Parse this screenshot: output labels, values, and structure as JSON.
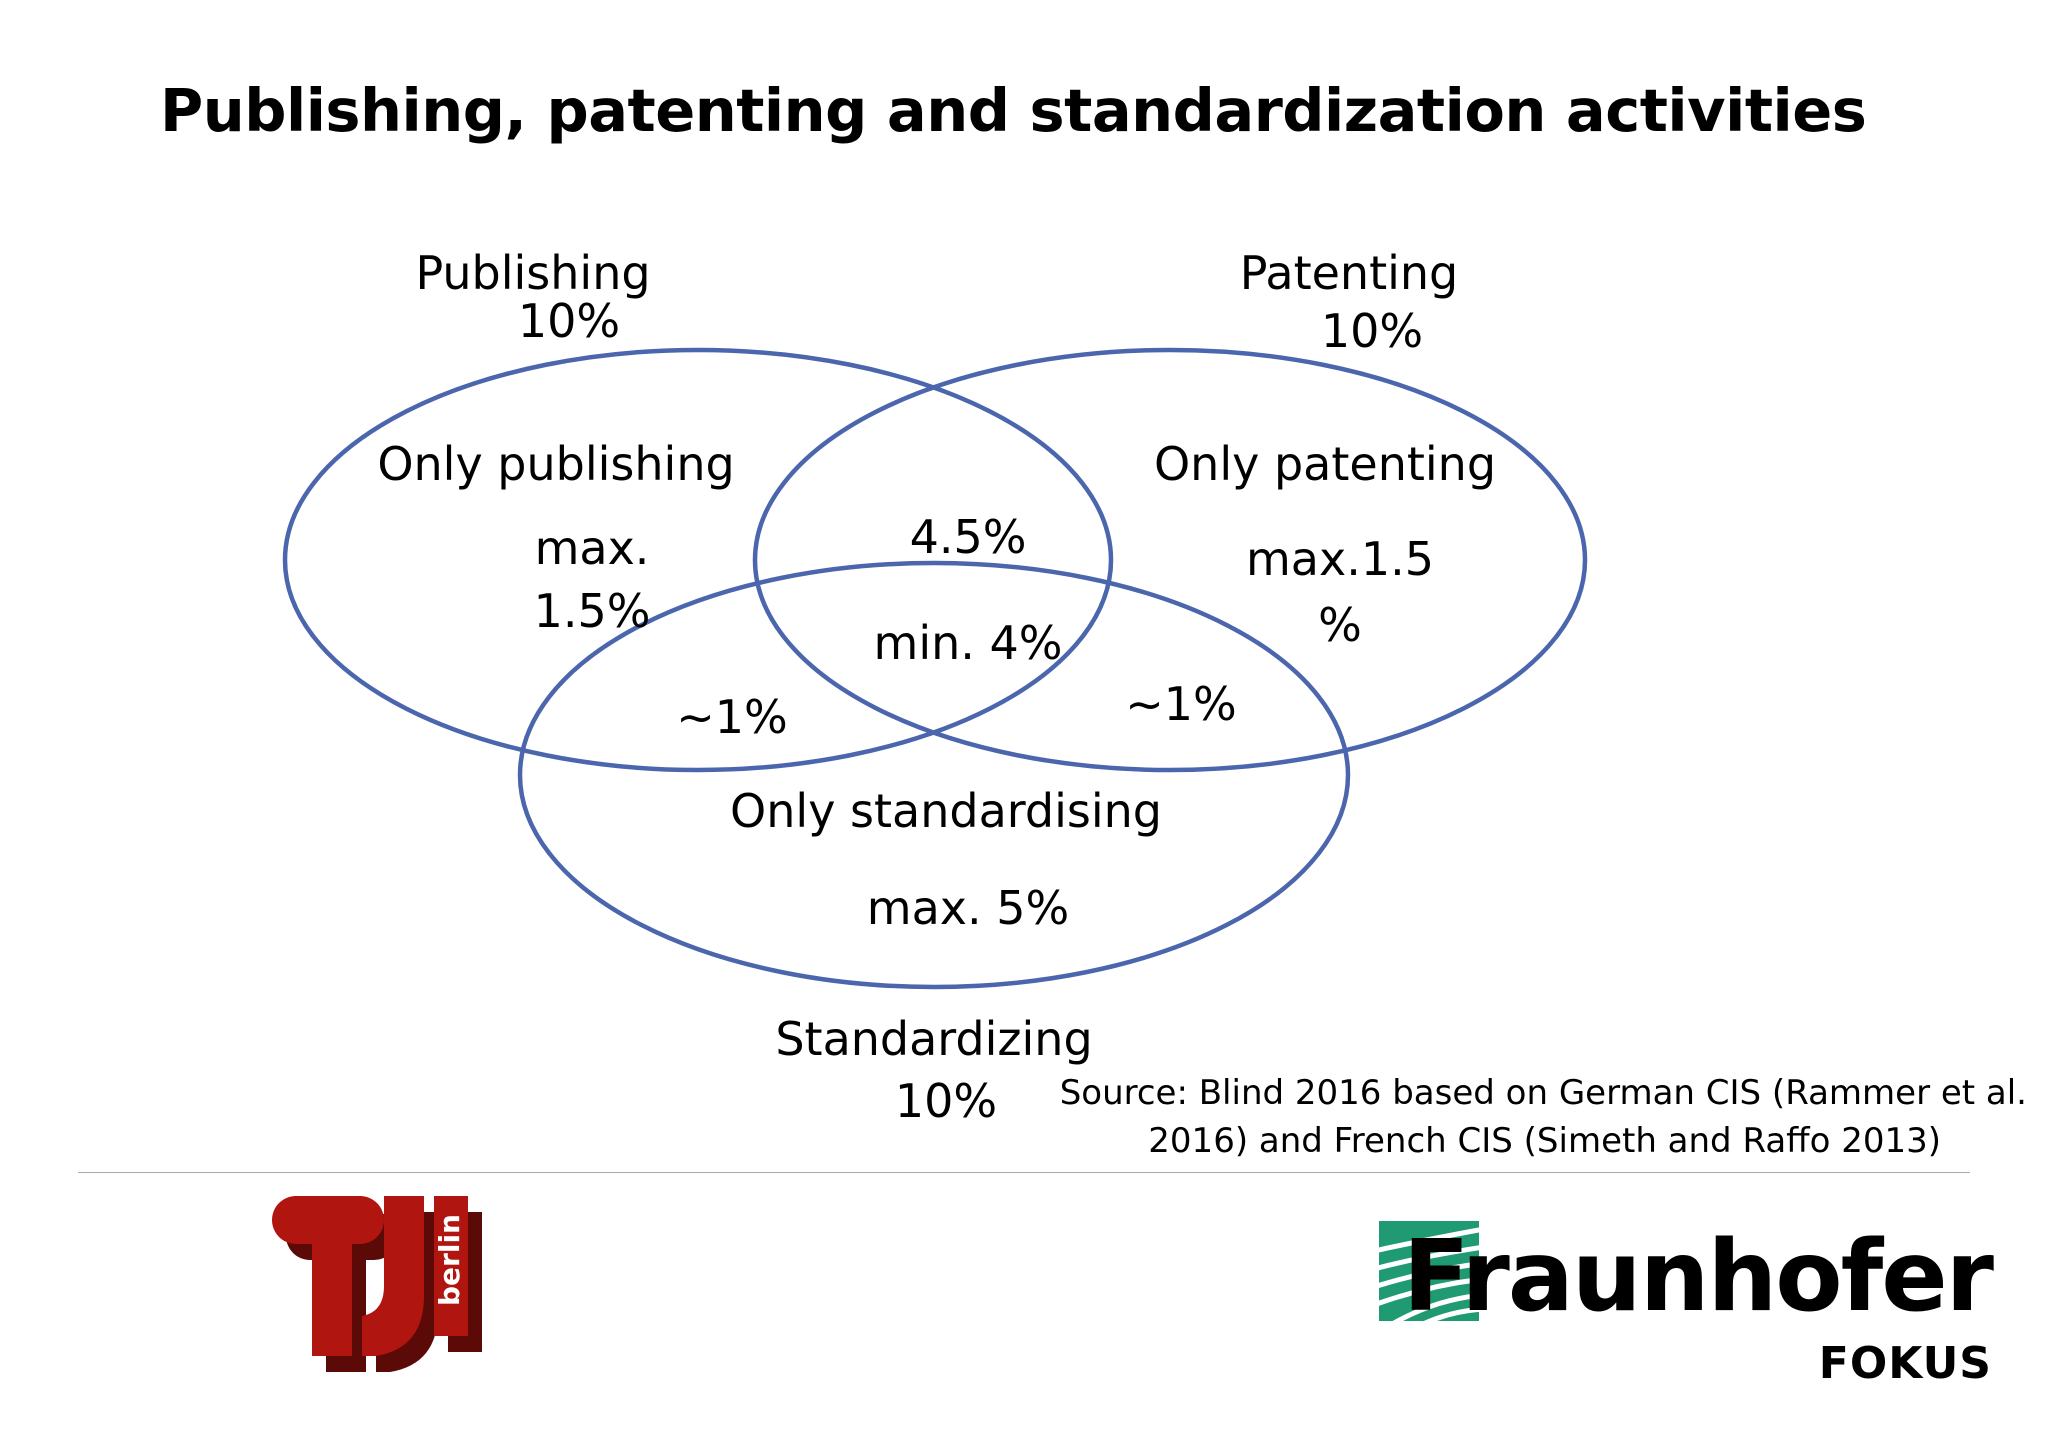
{
  "title": "Publishing, patenting and standardization activities",
  "colors": {
    "circle_stroke": "#4b66ad",
    "text": "#000000",
    "tu_red": "#b0150f",
    "tu_dark": "#5c0a07",
    "fraunhofer_green": "#1f9a72"
  },
  "venn": {
    "sets": {
      "publishing": {
        "name": "Publishing",
        "value": "10%"
      },
      "patenting": {
        "name": "Patenting",
        "value": "10%"
      },
      "standardizing": {
        "name": "Standardizing",
        "value": "10%"
      }
    },
    "regions": {
      "only_publishing": {
        "label": "Only publishing",
        "value_line1": "max.",
        "value_line2": "1.5%"
      },
      "only_patenting": {
        "label": "Only patenting",
        "value_line1": "max.1.5",
        "value_line2": "%"
      },
      "only_standardising": {
        "label": "Only standardising",
        "value": "max. 5%"
      },
      "publishing_patenting": {
        "value": "4.5%"
      },
      "all_three": {
        "value": "min. 4%"
      },
      "publishing_standardizing": {
        "value": "~1%"
      },
      "patenting_standardizing": {
        "value": "~1%"
      }
    }
  },
  "source": {
    "line1": "Source: Blind 2016 based on German CIS (Rammer et al.",
    "line2": "2016) and French CIS (Simeth and Raffo 2013)"
  },
  "logos": {
    "tu": {
      "text": "berlin"
    },
    "fraunhofer": {
      "name": "Fraunhofer",
      "sub": "FOKUS"
    }
  }
}
